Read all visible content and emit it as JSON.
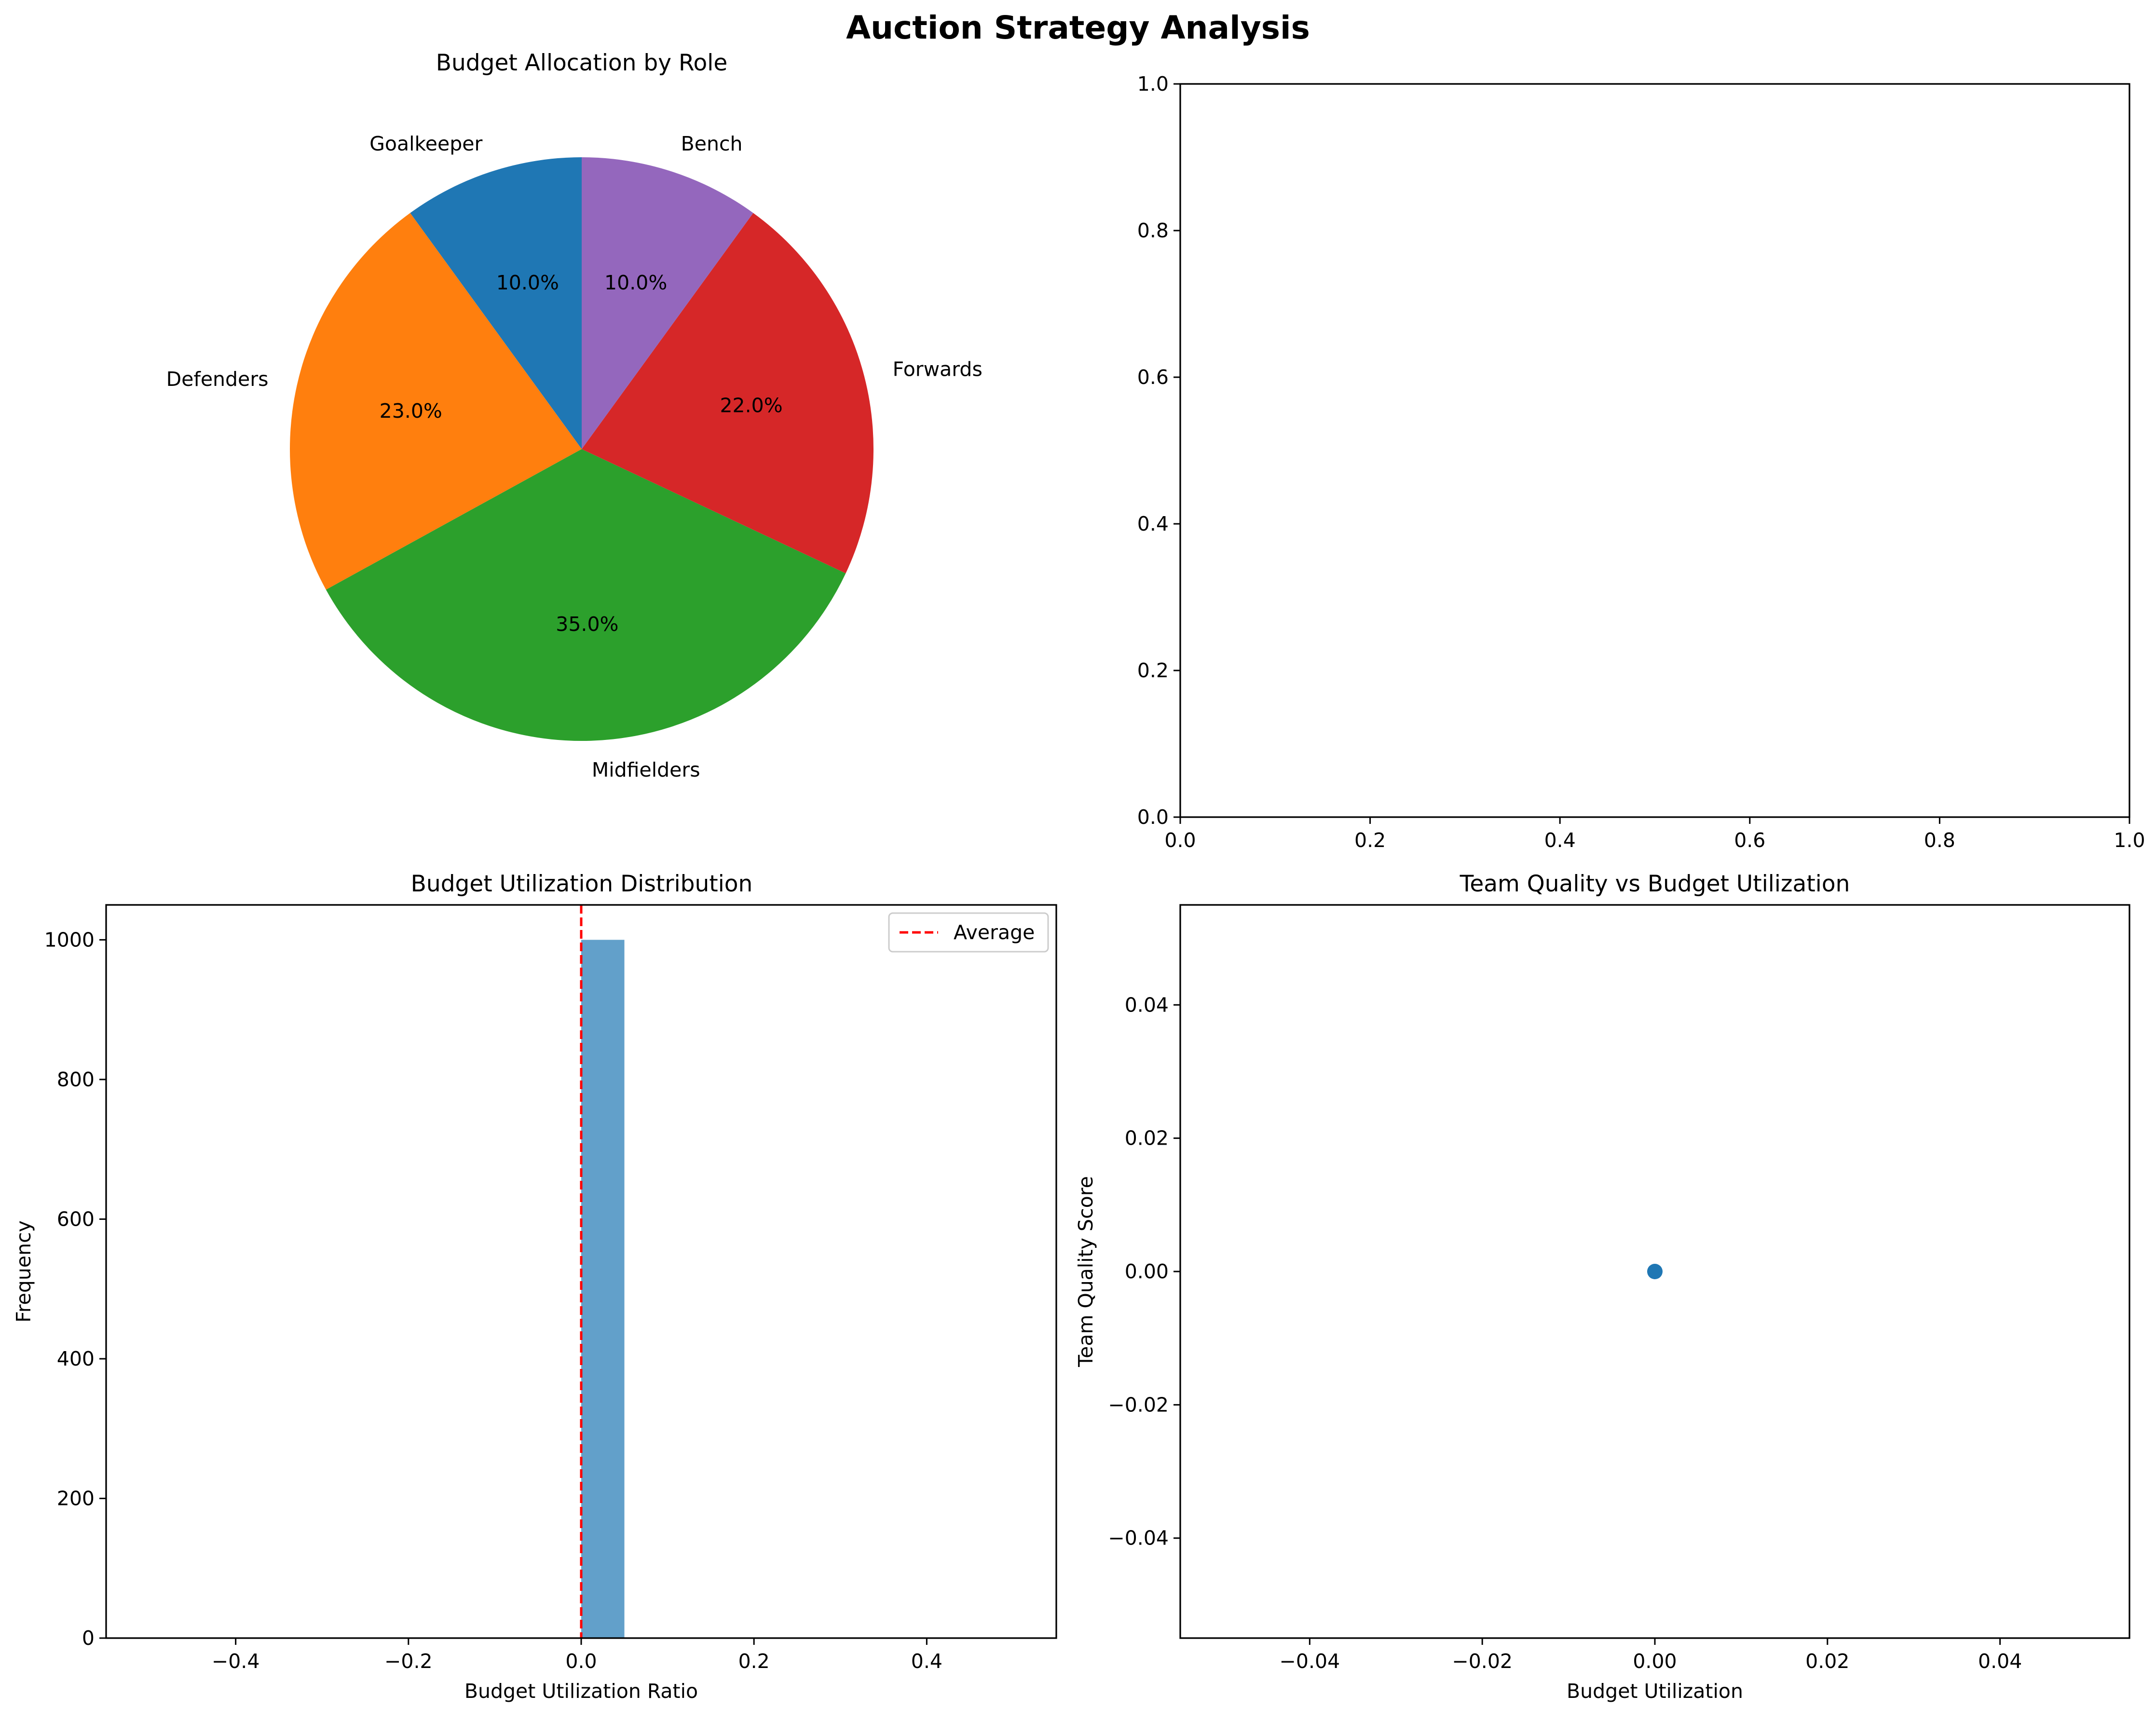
{
  "suptitle": "Auction Strategy Analysis",
  "chart_data": [
    {
      "type": "pie",
      "title": "Budget Allocation by Role",
      "categories": [
        "Goalkeeper",
        "Defenders",
        "Midfielders",
        "Forwards",
        "Bench"
      ],
      "values": [
        10.0,
        23.0,
        35.0,
        22.0,
        10.0
      ],
      "value_labels": [
        "10.0%",
        "23.0%",
        "35.0%",
        "22.0%",
        "10.0%"
      ],
      "colors": [
        "#1f77b4",
        "#ff7f0e",
        "#2ca02c",
        "#d62728",
        "#9467bd"
      ],
      "start_angle": 90,
      "direction": "counterclockwise"
    },
    {
      "type": "scatter",
      "title": "",
      "xlabel": "",
      "ylabel": "",
      "xlim": [
        0,
        1
      ],
      "ylim": [
        0,
        1
      ],
      "xticks": [
        0.0,
        0.2,
        0.4,
        0.6,
        0.8,
        1.0
      ],
      "yticks": [
        0.0,
        0.2,
        0.4,
        0.6,
        0.8,
        1.0
      ],
      "xtick_labels": [
        "0.0",
        "0.2",
        "0.4",
        "0.6",
        "0.8",
        "1.0"
      ],
      "ytick_labels": [
        "0.0",
        "0.2",
        "0.4",
        "0.6",
        "0.8",
        "1.0"
      ],
      "points": []
    },
    {
      "type": "bar",
      "title": "Budget Utilization Distribution",
      "xlabel": "Budget Utilization Ratio",
      "ylabel": "Frequency",
      "xlim": [
        -0.55,
        0.55
      ],
      "ylim": [
        0,
        1050
      ],
      "xticks": [
        -0.4,
        -0.2,
        0.0,
        0.2,
        0.4
      ],
      "yticks": [
        0,
        200,
        400,
        600,
        800,
        1000
      ],
      "xtick_labels": [
        "−0.4",
        "−0.2",
        "0.0",
        "0.2",
        "0.4"
      ],
      "ytick_labels": [
        "0",
        "200",
        "400",
        "600",
        "800",
        "1000"
      ],
      "bins": [
        {
          "x_start": 0.0,
          "x_end": 0.05,
          "value": 1000
        }
      ],
      "bar_color": "#1f77b4",
      "average_line": {
        "x": 0.0,
        "label": "Average",
        "color": "#ff0000"
      },
      "legend": {
        "placement": "top-right",
        "entries": [
          "Average"
        ]
      }
    },
    {
      "type": "scatter",
      "title": "Team Quality vs Budget Utilization",
      "xlabel": "Budget Utilization",
      "ylabel": "Team Quality Score",
      "xlim": [
        -0.055,
        0.055
      ],
      "ylim": [
        -0.055,
        0.055
      ],
      "xticks": [
        -0.04,
        -0.02,
        0.0,
        0.02,
        0.04
      ],
      "yticks": [
        -0.04,
        -0.02,
        0.0,
        0.02,
        0.04
      ],
      "xtick_labels": [
        "−0.04",
        "−0.02",
        "0.00",
        "0.02",
        "0.04"
      ],
      "ytick_labels": [
        "−0.04",
        "−0.02",
        "0.00",
        "0.02",
        "0.04"
      ],
      "points": [
        {
          "x": 0.0,
          "y": 0.0
        }
      ],
      "point_color": "#1f77b4"
    }
  ]
}
